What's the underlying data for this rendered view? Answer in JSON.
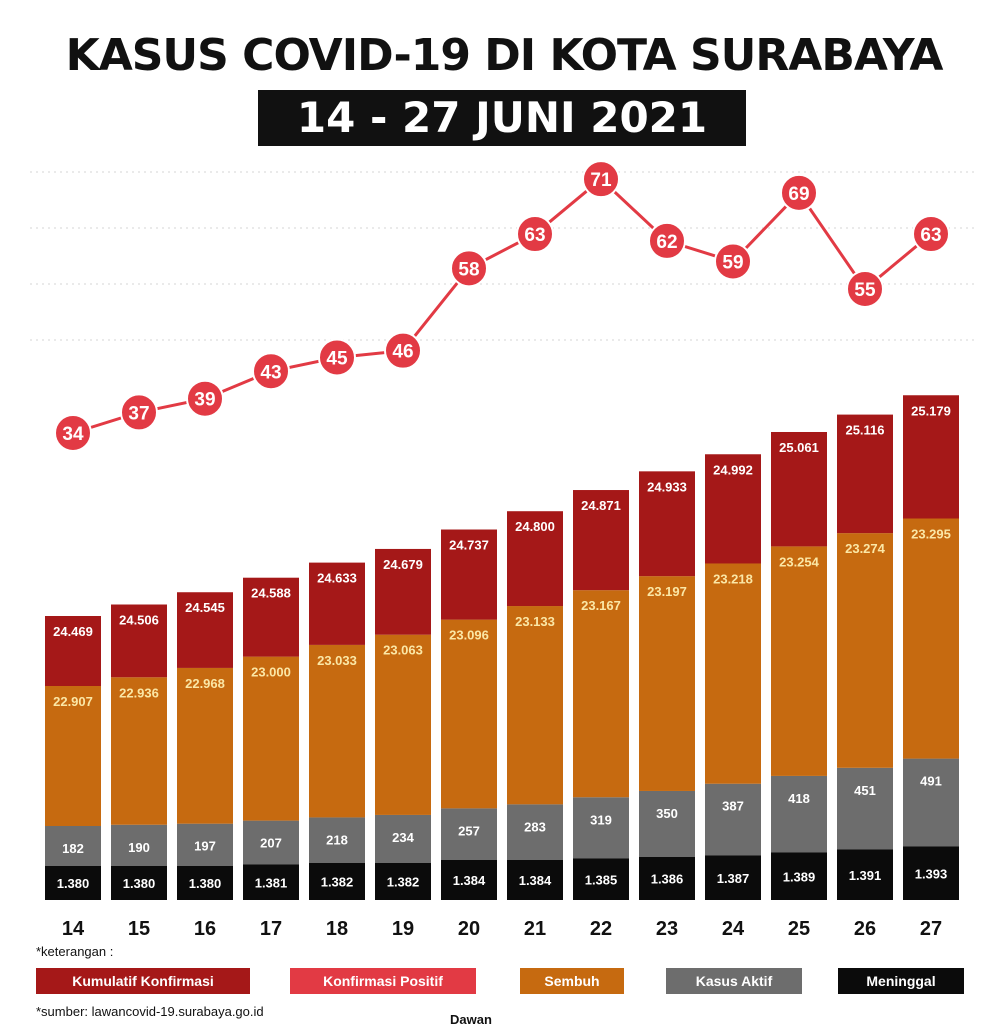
{
  "header": {
    "title": "KASUS COVID-19 DI KOTA SURABAYA",
    "subtitle": "14 - 27  JUNI  2021"
  },
  "colors": {
    "kumulatif": "#a51818",
    "positif": "#e23a44",
    "sembuh": "#c66a10",
    "aktif": "#6d6d6d",
    "meninggal": "#0b0b0b"
  },
  "legend": {
    "caption": "*keterangan :",
    "items": [
      "Kumulatif Konfirmasi",
      "Konfirmasi Positif",
      "Sembuh",
      "Kasus Aktif",
      "Meninggal"
    ]
  },
  "source": "*sumber: lawancovid-19.surabaya.go.id",
  "logo": "Dawan",
  "chart_data": {
    "type": "bar",
    "stacked": true,
    "categories": [
      "14",
      "15",
      "16",
      "17",
      "18",
      "19",
      "20",
      "21",
      "22",
      "23",
      "24",
      "25",
      "26",
      "27"
    ],
    "series": [
      {
        "name": "Meninggal",
        "values": [
          1380,
          1380,
          1380,
          1381,
          1382,
          1382,
          1384,
          1384,
          1385,
          1386,
          1387,
          1389,
          1391,
          1393
        ],
        "labels": [
          "1.380",
          "1.380",
          "1.380",
          "1.381",
          "1.382",
          "1.382",
          "1.384",
          "1.384",
          "1.385",
          "1.386",
          "1.387",
          "1.389",
          "1.391",
          "1.393"
        ]
      },
      {
        "name": "Kasus Aktif",
        "values": [
          182,
          190,
          197,
          207,
          218,
          234,
          257,
          283,
          319,
          350,
          387,
          418,
          451,
          491
        ],
        "labels": [
          "182",
          "190",
          "197",
          "207",
          "218",
          "234",
          "257",
          "283",
          "319",
          "350",
          "387",
          "418",
          "451",
          "491"
        ]
      },
      {
        "name": "Sembuh",
        "values": [
          22907,
          22936,
          22968,
          23000,
          23033,
          23063,
          23096,
          23133,
          23167,
          23197,
          23218,
          23254,
          23274,
          23295
        ],
        "labels": [
          "22.907",
          "22.936",
          "22.968",
          "23.000",
          "23.033",
          "23.063",
          "23.096",
          "23.133",
          "23.167",
          "23.197",
          "23.218",
          "23.254",
          "23.274",
          "23.295"
        ]
      },
      {
        "name": "Kumulatif Konfirmasi",
        "values": [
          24469,
          24506,
          24545,
          24588,
          24633,
          24679,
          24737,
          24800,
          24871,
          24933,
          24992,
          25061,
          25116,
          25179
        ],
        "labels": [
          "24.469",
          "24.506",
          "24.545",
          "24.588",
          "24.633",
          "24.679",
          "24.737",
          "24.800",
          "24.871",
          "24.933",
          "24.992",
          "25.061",
          "25.116",
          "25.179"
        ]
      }
    ],
    "line_series": {
      "name": "Konfirmasi Positif",
      "values": [
        34,
        37,
        39,
        43,
        45,
        46,
        58,
        63,
        71,
        62,
        59,
        69,
        55,
        63
      ]
    },
    "grid": true,
    "legend_position": "bottom"
  }
}
